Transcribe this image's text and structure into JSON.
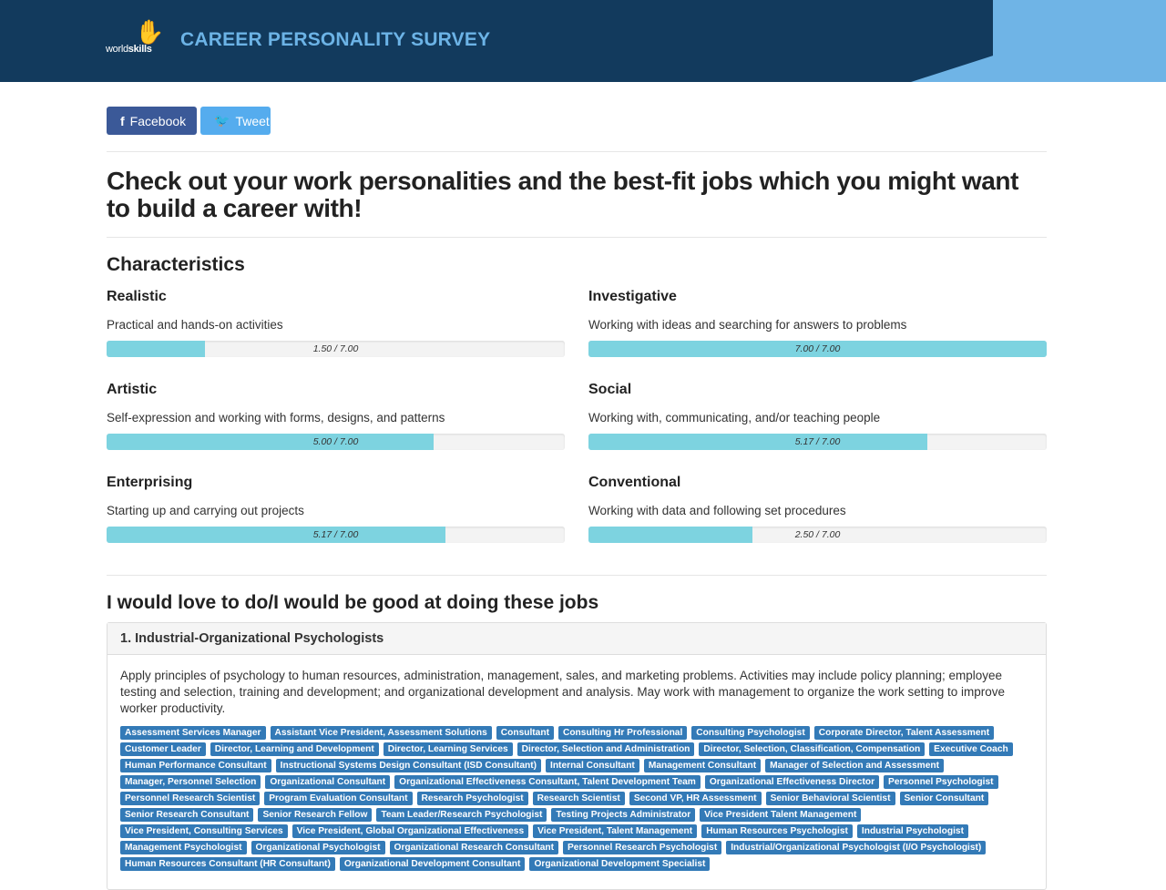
{
  "header": {
    "logo_text_light": "world",
    "logo_text_bold": "skills",
    "title": "CAREER PERSONALITY SURVEY"
  },
  "share": {
    "facebook": "Facebook",
    "tweet": "Tweet"
  },
  "headline": "Check out your work personalities and the best-fit jobs which you might want to build a career with!",
  "characteristics": {
    "title": "Characteristics",
    "items": [
      {
        "name": "Realistic",
        "desc": "Practical and hands-on activities",
        "score": 1.5,
        "label": "1.50 / 7.00"
      },
      {
        "name": "Investigative",
        "desc": "Working with ideas and searching for answers to problems",
        "score": 7.0,
        "label": "7.00 / 7.00"
      },
      {
        "name": "Artistic",
        "desc": "Self-expression and working with forms, designs, and patterns",
        "score": 5.0,
        "label": "5.00 / 7.00"
      },
      {
        "name": "Social",
        "desc": "Working with, communicating, and/or teaching people",
        "score": 5.17,
        "label": "5.17 / 7.00"
      },
      {
        "name": "Enterprising",
        "desc": "Starting up and carrying out projects",
        "score": 5.17,
        "label": "5.17 / 7.00"
      },
      {
        "name": "Conventional",
        "desc": "Working with data and following set procedures",
        "score": 2.5,
        "label": "2.50 / 7.00"
      }
    ],
    "max": 7
  },
  "jobs": {
    "title": "I would love to do/I would be good at doing these jobs",
    "items": [
      {
        "heading": "1. Industrial-Organizational Psychologists",
        "desc": "Apply principles of psychology to human resources, administration, management, sales, and marketing problems. Activities may include policy planning; employee testing and selection, training and development; and organizational development and analysis. May work with management to organize the work setting to improve worker productivity.",
        "tags": [
          "Assessment Services Manager",
          "Assistant Vice President, Assessment Solutions",
          "Consultant",
          "Consulting Hr Professional",
          "Consulting Psychologist",
          "Corporate Director, Talent Assessment",
          "Customer Leader",
          "Director, Learning and Development",
          "Director, Learning Services",
          "Director, Selection and Administration",
          "Director, Selection, Classification, Compensation",
          "Executive Coach",
          "Human Performance Consultant",
          "Instructional Systems Design Consultant (ISD Consultant)",
          "Internal Consultant",
          "Management Consultant",
          "Manager of Selection and Assessment",
          "Manager, Personnel Selection",
          "Organizational Consultant",
          "Organizational Effectiveness Consultant, Talent Development Team",
          "Organizational Effectiveness Director",
          "Personnel Psychologist",
          "Personnel Research Scientist",
          "Program Evaluation Consultant",
          "Research Psychologist",
          "Research Scientist",
          "Second VP, HR Assessment",
          "Senior Behavioral Scientist",
          "Senior Consultant",
          "Senior Research Consultant",
          "Senior Research Fellow",
          "Team Leader/Research Psychologist",
          "Testing Projects Administrator",
          "Vice President Talent Management",
          "Vice President, Consulting Services",
          "Vice President, Global Organizational Effectiveness",
          "Vice President, Talent Management",
          "Human Resources Psychologist",
          "Industrial Psychologist",
          "Management Psychologist",
          "Organizational Psychologist",
          "Organizational Research Consultant",
          "Personnel Research Psychologist",
          "Industrial/Organizational Psychologist (I/O Psychologist)",
          "Human Resources Consultant (HR Consultant)",
          "Organizational Development Consultant",
          "Organizational Development Specialist"
        ]
      }
    ]
  }
}
